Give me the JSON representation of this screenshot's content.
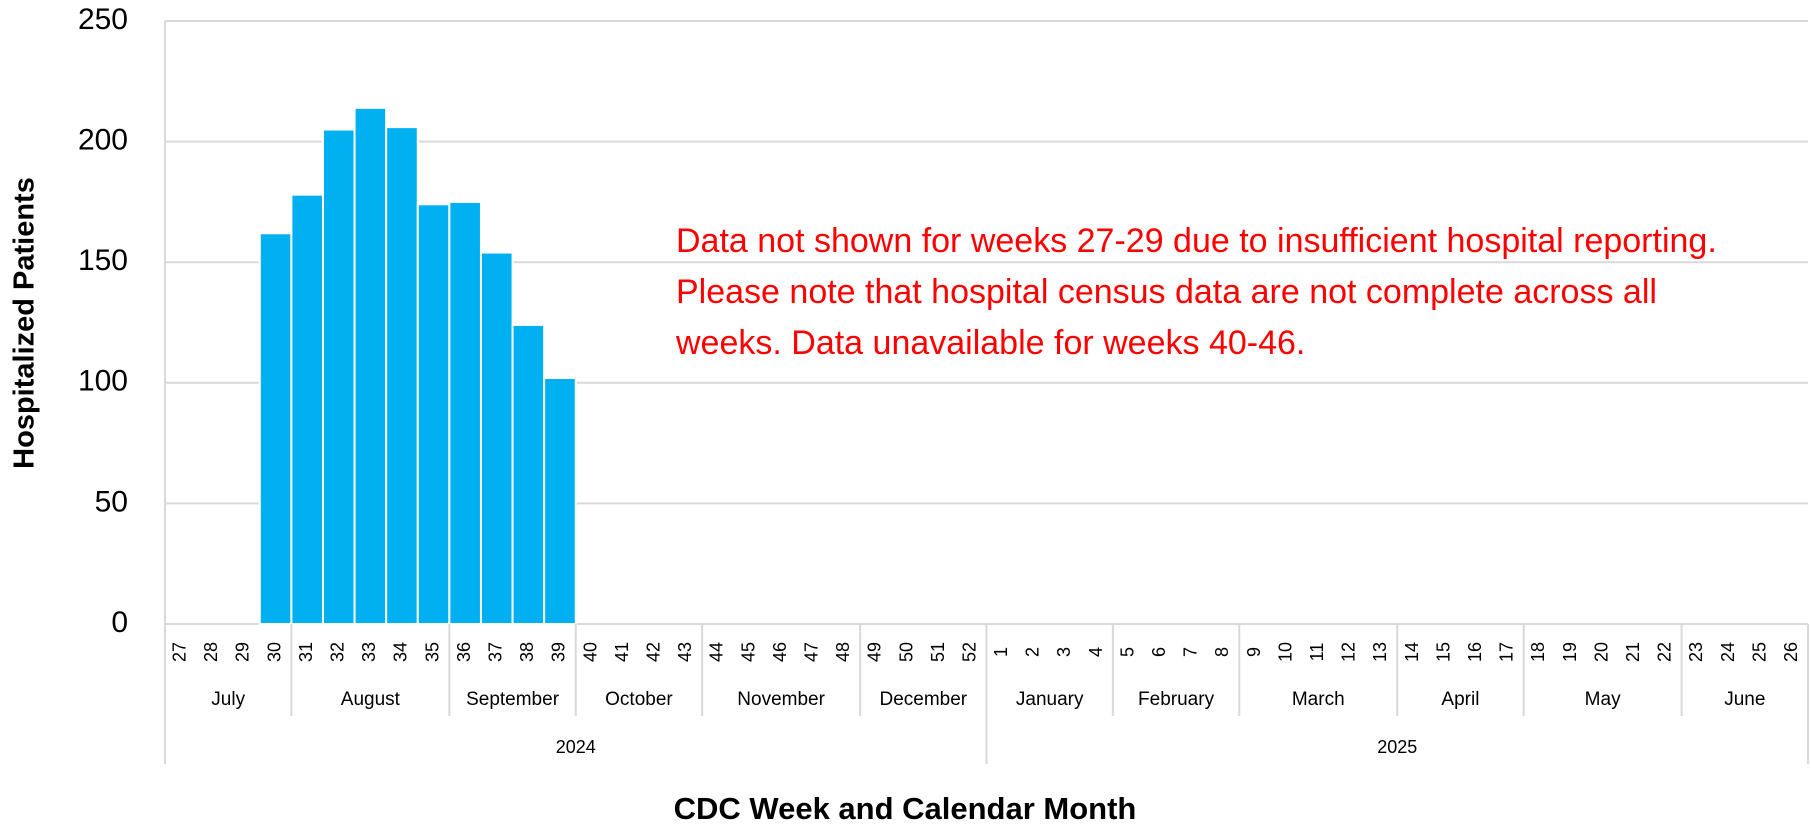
{
  "chart_data": {
    "type": "bar",
    "ylabel": "Hospitalized Patients",
    "xlabel": "CDC Week and Calendar Month",
    "annotation": "Data not shown for weeks 27-29 due to insufficient hospital reporting. Please note that hospital census data are not complete across all weeks. Data unavailable for weeks 40-46.",
    "categories": [
      "27",
      "28",
      "29",
      "30",
      "31",
      "32",
      "33",
      "34",
      "35",
      "36",
      "37",
      "38",
      "39",
      "40",
      "41",
      "42",
      "43",
      "44",
      "45",
      "46",
      "47",
      "48",
      "49",
      "50",
      "51",
      "52",
      "1",
      "2",
      "3",
      "4",
      "5",
      "6",
      "7",
      "8",
      "9",
      "10",
      "11",
      "12",
      "13",
      "14",
      "15",
      "16",
      "17",
      "18",
      "19",
      "20",
      "21",
      "22",
      "23",
      "24",
      "25",
      "26"
    ],
    "months": [
      "July",
      "July",
      "July",
      "July",
      "August",
      "August",
      "August",
      "August",
      "August",
      "September",
      "September",
      "September",
      "September",
      "October",
      "October",
      "October",
      "October",
      "November",
      "November",
      "November",
      "November",
      "November",
      "December",
      "December",
      "December",
      "December",
      "January",
      "January",
      "January",
      "January",
      "February",
      "February",
      "February",
      "February",
      "March",
      "March",
      "March",
      "March",
      "March",
      "April",
      "April",
      "April",
      "April",
      "May",
      "May",
      "May",
      "May",
      "May",
      "June",
      "June",
      "June",
      "June"
    ],
    "years": [
      "2024",
      "2024",
      "2024",
      "2024",
      "2024",
      "2024",
      "2024",
      "2024",
      "2024",
      "2024",
      "2024",
      "2024",
      "2024",
      "2024",
      "2024",
      "2024",
      "2024",
      "2024",
      "2024",
      "2024",
      "2024",
      "2024",
      "2024",
      "2024",
      "2024",
      "2024",
      "2025",
      "2025",
      "2025",
      "2025",
      "2025",
      "2025",
      "2025",
      "2025",
      "2025",
      "2025",
      "2025",
      "2025",
      "2025",
      "2025",
      "2025",
      "2025",
      "2025",
      "2025",
      "2025",
      "2025",
      "2025",
      "2025",
      "2025",
      "2025",
      "2025",
      "2025"
    ],
    "values": [
      null,
      null,
      null,
      162,
      178,
      205,
      214,
      206,
      174,
      175,
      154,
      124,
      102,
      null,
      null,
      null,
      null,
      null,
      null,
      null,
      null,
      null,
      null,
      null,
      null,
      null,
      null,
      null,
      null,
      null,
      null,
      null,
      null,
      null,
      null,
      null,
      null,
      null,
      null,
      null,
      null,
      null,
      null,
      null,
      null,
      null,
      null,
      null,
      null,
      null,
      null,
      null
    ],
    "color": "#00b0f0",
    "ylim": [
      0,
      250
    ],
    "yticks": [
      0,
      50,
      100,
      150,
      200,
      250
    ],
    "grid": true
  }
}
